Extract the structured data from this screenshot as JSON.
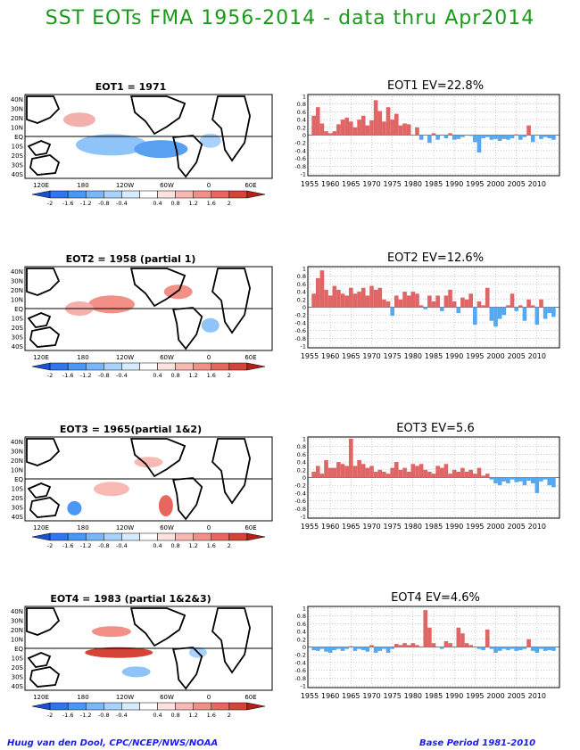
{
  "page": {
    "title": "SST EOTs FMA 1956-2014 - data thru Apr2014",
    "credit": "Huug van den Dool, CPC/NCEP/NWS/NOAA",
    "base_period": "Base Period 1981-2010"
  },
  "map_axes": {
    "lat_labels": [
      "40N",
      "30N",
      "20N",
      "10N",
      "EQ",
      "10S",
      "20S",
      "30S",
      "40S"
    ],
    "lon_labels": [
      "120E",
      "180",
      "120W",
      "60W",
      "0",
      "60E"
    ]
  },
  "colorbar": {
    "tick_labels": [
      "-2",
      "-1.6",
      "-1.2",
      "-0.8",
      "-0.4",
      "0.4",
      "0.8",
      "1.2",
      "1.6",
      "2"
    ],
    "colors": [
      "#1b4fd6",
      "#2f75ee",
      "#4b97f5",
      "#78b8fa",
      "#a8d2fc",
      "#d6ebfe",
      "#ffffff",
      "#fde2e0",
      "#f9b9b3",
      "#f29087",
      "#e7675e",
      "#d44438",
      "#b51f18"
    ]
  },
  "colors": {
    "positive_bar": "#e06666",
    "negative_bar": "#56a8f0",
    "land_outline": "#000000"
  },
  "panels": [
    {
      "map_title": "EOT1    = 1971"
    },
    {
      "map_title": "EOT2     = 1958  (partial  1)"
    },
    {
      "map_title": "EOT3     = 1965(partial 1&2)"
    },
    {
      "map_title": "EOT4     = 1983  (partial  1&2&3)"
    }
  ],
  "chart_data": [
    {
      "type": "bar",
      "title": "EOT1   EV=22.8%",
      "x": [
        1956,
        1957,
        1958,
        1959,
        1960,
        1961,
        1962,
        1963,
        1964,
        1965,
        1966,
        1967,
        1968,
        1969,
        1970,
        1971,
        1972,
        1973,
        1974,
        1975,
        1976,
        1977,
        1978,
        1979,
        1980,
        1981,
        1982,
        1983,
        1984,
        1985,
        1986,
        1987,
        1988,
        1989,
        1990,
        1991,
        1992,
        1993,
        1994,
        1995,
        1996,
        1997,
        1998,
        1999,
        2000,
        2001,
        2002,
        2003,
        2004,
        2005,
        2006,
        2007,
        2008,
        2009,
        2010,
        2011,
        2012,
        2013,
        2014
      ],
      "values": [
        0.5,
        0.72,
        0.3,
        0.1,
        0.05,
        0.1,
        0.28,
        0.4,
        0.45,
        0.35,
        0.2,
        0.4,
        0.5,
        0.25,
        0.38,
        0.9,
        0.62,
        0.35,
        0.72,
        0.4,
        0.55,
        0.25,
        0.3,
        0.28,
        0.0,
        0.2,
        -0.12,
        0.0,
        -0.2,
        0.05,
        -0.12,
        0.0,
        -0.08,
        0.05,
        -0.12,
        -0.1,
        -0.05,
        0.0,
        -0.02,
        -0.18,
        -0.45,
        -0.08,
        -0.05,
        -0.12,
        -0.1,
        -0.15,
        -0.1,
        -0.12,
        -0.08,
        0.02,
        -0.12,
        -0.05,
        0.25,
        -0.18,
        0.0,
        -0.1,
        -0.05,
        -0.08,
        -0.12
      ],
      "xtick_labels": [
        "1955",
        "1960",
        "1965",
        "1970",
        "1975",
        "1980",
        "1985",
        "1990",
        "1995",
        "2000",
        "2005",
        "2010"
      ],
      "ytick_labels": [
        "-1",
        "-0.8",
        "-0.6",
        "-0.4",
        "-0.2",
        "0",
        "0.2",
        "0.4",
        "0.6",
        "0.8",
        "1"
      ],
      "ylim": [
        -1,
        1
      ],
      "grid": true
    },
    {
      "type": "bar",
      "title": "EOT2   EV=12.6%",
      "x": [
        1956,
        1957,
        1958,
        1959,
        1960,
        1961,
        1962,
        1963,
        1964,
        1965,
        1966,
        1967,
        1968,
        1969,
        1970,
        1971,
        1972,
        1973,
        1974,
        1975,
        1976,
        1977,
        1978,
        1979,
        1980,
        1981,
        1982,
        1983,
        1984,
        1985,
        1986,
        1987,
        1988,
        1989,
        1990,
        1991,
        1992,
        1993,
        1994,
        1995,
        1996,
        1997,
        1998,
        1999,
        2000,
        2001,
        2002,
        2003,
        2004,
        2005,
        2006,
        2007,
        2008,
        2009,
        2010,
        2011,
        2012,
        2013,
        2014
      ],
      "values": [
        0.35,
        0.75,
        0.95,
        0.45,
        0.3,
        0.55,
        0.45,
        0.35,
        0.3,
        0.5,
        0.35,
        0.4,
        0.5,
        0.3,
        0.55,
        0.45,
        0.5,
        0.2,
        0.15,
        -0.22,
        0.3,
        0.2,
        0.4,
        0.3,
        0.4,
        0.35,
        0.05,
        -0.05,
        0.3,
        0.15,
        0.3,
        -0.1,
        0.3,
        0.45,
        0.15,
        -0.15,
        0.25,
        0.2,
        0.35,
        -0.45,
        0.15,
        0.05,
        0.5,
        -0.35,
        -0.5,
        -0.3,
        -0.2,
        0.05,
        0.35,
        -0.1,
        0.05,
        -0.35,
        0.2,
        0.05,
        -0.45,
        0.2,
        -0.3,
        -0.15,
        -0.25
      ],
      "xtick_labels": [
        "1955",
        "1960",
        "1965",
        "1970",
        "1975",
        "1980",
        "1985",
        "1990",
        "1995",
        "2000",
        "2005",
        "2010"
      ],
      "ytick_labels": [
        "-1",
        "-0.8",
        "-0.6",
        "-0.4",
        "-0.2",
        "0",
        "0.2",
        "0.4",
        "0.6",
        "0.8",
        "1"
      ],
      "ylim": [
        -1,
        1
      ],
      "grid": true
    },
    {
      "type": "bar",
      "title": "EOT3   EV=5.6",
      "x": [
        1956,
        1957,
        1958,
        1959,
        1960,
        1961,
        1962,
        1963,
        1964,
        1965,
        1966,
        1967,
        1968,
        1969,
        1970,
        1971,
        1972,
        1973,
        1974,
        1975,
        1976,
        1977,
        1978,
        1979,
        1980,
        1981,
        1982,
        1983,
        1984,
        1985,
        1986,
        1987,
        1988,
        1989,
        1990,
        1991,
        1992,
        1993,
        1994,
        1995,
        1996,
        1997,
        1998,
        1999,
        2000,
        2001,
        2002,
        2003,
        2004,
        2005,
        2006,
        2007,
        2008,
        2009,
        2010,
        2011,
        2012,
        2013,
        2014
      ],
      "values": [
        0.15,
        0.3,
        0.1,
        0.45,
        0.25,
        0.25,
        0.4,
        0.35,
        0.3,
        1.0,
        0.3,
        0.45,
        0.35,
        0.25,
        0.3,
        0.15,
        0.2,
        0.15,
        0.1,
        0.25,
        0.4,
        0.2,
        0.25,
        0.15,
        0.35,
        0.3,
        0.35,
        0.2,
        0.15,
        0.1,
        0.3,
        0.25,
        0.35,
        0.1,
        0.2,
        0.15,
        0.25,
        0.15,
        0.2,
        0.1,
        0.25,
        0.05,
        0.1,
        -0.05,
        -0.15,
        -0.2,
        -0.1,
        -0.15,
        -0.05,
        -0.12,
        -0.1,
        -0.2,
        -0.08,
        -0.15,
        -0.4,
        -0.1,
        -0.05,
        -0.2,
        -0.25
      ],
      "xtick_labels": [
        "1955",
        "1960",
        "1965",
        "1970",
        "1975",
        "1980",
        "1985",
        "1990",
        "1995",
        "2000",
        "2005",
        "2010"
      ],
      "ytick_labels": [
        "-1",
        "-0.8",
        "-0.6",
        "-0.4",
        "-0.2",
        "0",
        "0.2",
        "0.4",
        "0.6",
        "0.8",
        "1"
      ],
      "ylim": [
        -1,
        1
      ],
      "grid": true
    },
    {
      "type": "bar",
      "title": "EOT4   EV=4.6%",
      "x": [
        1956,
        1957,
        1958,
        1959,
        1960,
        1961,
        1962,
        1963,
        1964,
        1965,
        1966,
        1967,
        1968,
        1969,
        1970,
        1971,
        1972,
        1973,
        1974,
        1975,
        1976,
        1977,
        1978,
        1979,
        1980,
        1981,
        1982,
        1983,
        1984,
        1985,
        1986,
        1987,
        1988,
        1989,
        1990,
        1991,
        1992,
        1993,
        1994,
        1995,
        1996,
        1997,
        1998,
        1999,
        2000,
        2001,
        2002,
        2003,
        2004,
        2005,
        2006,
        2007,
        2008,
        2009,
        2010,
        2011,
        2012,
        2013,
        2014
      ],
      "values": [
        -0.08,
        -0.1,
        -0.05,
        -0.12,
        -0.15,
        -0.08,
        -0.05,
        -0.1,
        -0.05,
        0.02,
        -0.1,
        -0.05,
        -0.08,
        -0.12,
        0.05,
        -0.15,
        -0.1,
        -0.05,
        -0.15,
        -0.05,
        0.08,
        0.05,
        0.1,
        0.05,
        0.1,
        0.05,
        0.0,
        0.95,
        0.5,
        0.1,
        0.0,
        -0.05,
        0.15,
        0.1,
        0.0,
        0.5,
        0.35,
        0.1,
        0.05,
        0.0,
        -0.05,
        -0.08,
        0.45,
        -0.05,
        -0.15,
        -0.1,
        -0.05,
        -0.08,
        -0.05,
        -0.1,
        -0.08,
        -0.05,
        0.2,
        -0.1,
        -0.15,
        -0.05,
        -0.1,
        -0.08,
        -0.1
      ],
      "xtick_labels": [
        "1955",
        "1960",
        "1965",
        "1970",
        "1975",
        "1980",
        "1985",
        "1990",
        "1995",
        "2000",
        "2005",
        "2010"
      ],
      "ytick_labels": [
        "-1",
        "-0.8",
        "-0.6",
        "-0.4",
        "-0.2",
        "0",
        "0.2",
        "0.4",
        "0.6",
        "0.8",
        "1"
      ],
      "ylim": [
        -1,
        1
      ],
      "grid": true
    }
  ]
}
